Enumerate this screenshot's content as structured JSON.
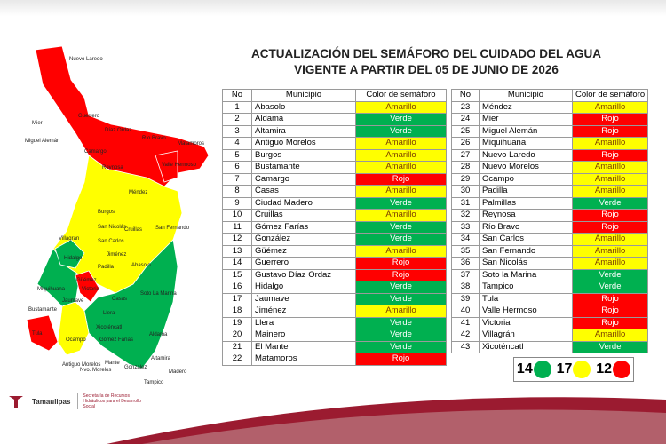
{
  "header": {
    "title_line1": "ACTUALIZACIÓN DEL SEMÁFORO DEL CUIDADO DEL AGUA",
    "title_line2": "VIGENTE A PARTIR DEL 05 DE JUNIO DE 2026"
  },
  "table": {
    "columns": [
      "No",
      "Municipio",
      "Color de semáforo"
    ],
    "rows": [
      {
        "no": 1,
        "municipio": "Abasolo",
        "semaforo": "Amarillo",
        "color": "#ffff00"
      },
      {
        "no": 2,
        "municipio": "Aldama",
        "semaforo": "Verde",
        "color": "#00b050"
      },
      {
        "no": 3,
        "municipio": "Altamira",
        "semaforo": "Verde",
        "color": "#00b050"
      },
      {
        "no": 4,
        "municipio": "Antiguo Morelos",
        "semaforo": "Amarillo",
        "color": "#ffff00"
      },
      {
        "no": 5,
        "municipio": "Burgos",
        "semaforo": "Amarillo",
        "color": "#ffff00"
      },
      {
        "no": 6,
        "municipio": "Bustamante",
        "semaforo": "Amarillo",
        "color": "#ffff00"
      },
      {
        "no": 7,
        "municipio": "Camargo",
        "semaforo": "Rojo",
        "color": "#ff0000"
      },
      {
        "no": 8,
        "municipio": "Casas",
        "semaforo": "Amarillo",
        "color": "#ffff00"
      },
      {
        "no": 9,
        "municipio": "Ciudad Madero",
        "semaforo": "Verde",
        "color": "#00b050"
      },
      {
        "no": 10,
        "municipio": "Cruillas",
        "semaforo": "Amarillo",
        "color": "#ffff00"
      },
      {
        "no": 11,
        "municipio": "Gómez Farías",
        "semaforo": "Verde",
        "color": "#00b050"
      },
      {
        "no": 12,
        "municipio": "González",
        "semaforo": "Verde",
        "color": "#00b050"
      },
      {
        "no": 13,
        "municipio": "Güémez",
        "semaforo": "Amarillo",
        "color": "#ffff00"
      },
      {
        "no": 14,
        "municipio": "Guerrero",
        "semaforo": "Rojo",
        "color": "#ff0000"
      },
      {
        "no": 15,
        "municipio": "Gustavo Díaz Ordaz",
        "semaforo": "Rojo",
        "color": "#ff0000"
      },
      {
        "no": 16,
        "municipio": "Hidalgo",
        "semaforo": "Verde",
        "color": "#00b050"
      },
      {
        "no": 17,
        "municipio": "Jaumave",
        "semaforo": "Verde",
        "color": "#00b050"
      },
      {
        "no": 18,
        "municipio": "Jiménez",
        "semaforo": "Amarillo",
        "color": "#ffff00"
      },
      {
        "no": 19,
        "municipio": "Llera",
        "semaforo": "Verde",
        "color": "#00b050"
      },
      {
        "no": 20,
        "municipio": "Mainero",
        "semaforo": "Verde",
        "color": "#00b050"
      },
      {
        "no": 21,
        "municipio": "El Mante",
        "semaforo": "Verde",
        "color": "#00b050"
      },
      {
        "no": 22,
        "municipio": "Matamoros",
        "semaforo": "Rojo",
        "color": "#ff0000"
      },
      {
        "no": 23,
        "municipio": "Méndez",
        "semaforo": "Amarillo",
        "color": "#ffff00"
      },
      {
        "no": 24,
        "municipio": "Mier",
        "semaforo": "Rojo",
        "color": "#ff0000"
      },
      {
        "no": 25,
        "municipio": "Miguel Alemán",
        "semaforo": "Rojo",
        "color": "#ff0000"
      },
      {
        "no": 26,
        "municipio": "Miquihuana",
        "semaforo": "Amarillo",
        "color": "#ffff00"
      },
      {
        "no": 27,
        "municipio": "Nuevo Laredo",
        "semaforo": "Rojo",
        "color": "#ff0000"
      },
      {
        "no": 28,
        "municipio": "Nuevo Morelos",
        "semaforo": "Amarillo",
        "color": "#ffff00"
      },
      {
        "no": 29,
        "municipio": "Ocampo",
        "semaforo": "Amarillo",
        "color": "#ffff00"
      },
      {
        "no": 30,
        "municipio": "Padilla",
        "semaforo": "Amarillo",
        "color": "#ffff00"
      },
      {
        "no": 31,
        "municipio": "Palmillas",
        "semaforo": "Verde",
        "color": "#00b050"
      },
      {
        "no": 32,
        "municipio": "Reynosa",
        "semaforo": "Rojo",
        "color": "#ff0000"
      },
      {
        "no": 33,
        "municipio": "Río Bravo",
        "semaforo": "Rojo",
        "color": "#ff0000"
      },
      {
        "no": 34,
        "municipio": "San Carlos",
        "semaforo": "Amarillo",
        "color": "#ffff00"
      },
      {
        "no": 35,
        "municipio": "San Fernando",
        "semaforo": "Amarillo",
        "color": "#ffff00"
      },
      {
        "no": 36,
        "municipio": "San Nicolás",
        "semaforo": "Amarillo",
        "color": "#ffff00"
      },
      {
        "no": 37,
        "municipio": "Soto la Marina",
        "semaforo": "Verde",
        "color": "#00b050"
      },
      {
        "no": 38,
        "municipio": "Tampico",
        "semaforo": "Verde",
        "color": "#00b050"
      },
      {
        "no": 39,
        "municipio": "Tula",
        "semaforo": "Rojo",
        "color": "#ff0000"
      },
      {
        "no": 40,
        "municipio": "Valle Hermoso",
        "semaforo": "Rojo",
        "color": "#ff0000"
      },
      {
        "no": 41,
        "municipio": "Victoria",
        "semaforo": "Rojo",
        "color": "#ff0000"
      },
      {
        "no": 42,
        "municipio": "Villagrán",
        "semaforo": "Amarillo",
        "color": "#ffff00"
      },
      {
        "no": 43,
        "municipio": "Xicoténcatl",
        "semaforo": "Verde",
        "color": "#00b050"
      }
    ]
  },
  "legend": [
    {
      "count": 14,
      "color": "#00b050"
    },
    {
      "count": 17,
      "color": "#ffff00"
    },
    {
      "count": 12,
      "color": "#ff0000"
    }
  ],
  "map": {
    "labels": [
      "Nuevo Laredo",
      "Guerrero",
      "Mier",
      "Díaz Ordaz",
      "Miguel Alemán",
      "Río Bravo",
      "Matamoros",
      "Camargo",
      "Reynosa",
      "Valle Hermoso",
      "Méndez",
      "Burgos",
      "San Nicolás",
      "Cruillas",
      "San Fernando",
      "Villagrán",
      "San Carlos",
      "Hidalgo",
      "Jiménez",
      "Padilla",
      "Abasolo",
      "Güémez",
      "Soto La Marina",
      "Miquihuana",
      "Victoria",
      "Casas",
      "Jaumave",
      "Bustamante",
      "Llera",
      "Tula",
      "Ocampo",
      "Xicoténcatl",
      "Gómez Farías",
      "Aldama",
      "Mante",
      "Antiguo Morelos",
      "Nvo. Morelos",
      "González",
      "Altamira",
      "Tampico",
      "Madero"
    ]
  },
  "footer": {
    "brand": "Tamaulipas",
    "agency": "Secretaría de Recursos Hidráulicos para el Desarrollo Social"
  }
}
